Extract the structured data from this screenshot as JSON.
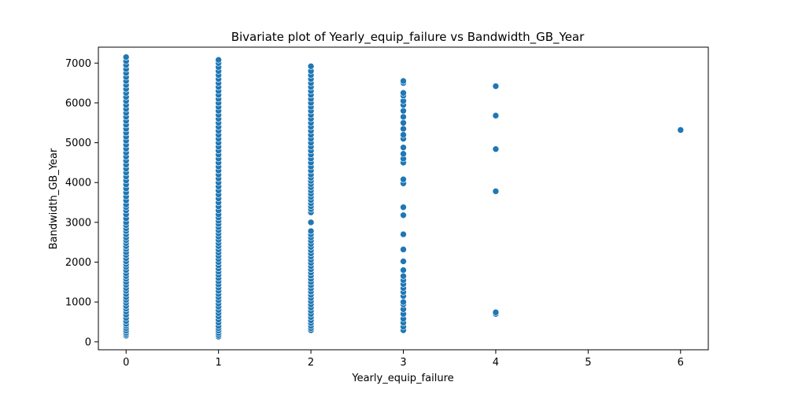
{
  "chart_data": {
    "type": "scatter",
    "title": "Bivariate plot of Yearly_equip_failure vs Bandwidth_GB_Year",
    "xlabel": "Yearly_equip_failure",
    "ylabel": "Bandwidth_GB_Year",
    "xlim": [
      -0.3,
      6.3
    ],
    "ylim": [
      -200,
      7400
    ],
    "xticks": [
      0,
      1,
      2,
      3,
      4,
      5,
      6
    ],
    "yticks": [
      0,
      1000,
      2000,
      3000,
      4000,
      5000,
      6000,
      7000
    ],
    "grid": false,
    "legend": "none",
    "color": "#1f77b4",
    "series": [
      {
        "x": 0,
        "values": [
          155,
          190,
          230,
          280,
          340,
          400,
          450,
          520,
          600,
          680,
          760,
          830,
          900,
          980,
          1050,
          1120,
          1200,
          1280,
          1350,
          1430,
          1500,
          1580,
          1650,
          1720,
          1800,
          1880,
          1950,
          2020,
          2100,
          2180,
          2250,
          2330,
          2400,
          2480,
          2550,
          2620,
          2700,
          2780,
          2850,
          2930,
          3000,
          3100,
          3200,
          3300,
          3380,
          3450,
          3550,
          3650,
          3750,
          3850,
          3950,
          4050,
          4150,
          4250,
          4350,
          4450,
          4550,
          4650,
          4750,
          4850,
          4950,
          5050,
          5150,
          5250,
          5350,
          5450,
          5550,
          5650,
          5750,
          5850,
          5950,
          6050,
          6150,
          6250,
          6350,
          6450,
          6550,
          6650,
          6750,
          6850,
          6950,
          7050,
          7150
        ]
      },
      {
        "x": 1,
        "values": [
          130,
          170,
          220,
          280,
          340,
          400,
          480,
          560,
          640,
          720,
          800,
          880,
          960,
          1040,
          1120,
          1200,
          1280,
          1360,
          1440,
          1520,
          1600,
          1680,
          1760,
          1840,
          1920,
          2000,
          2080,
          2160,
          2240,
          2320,
          2400,
          2480,
          2560,
          2640,
          2720,
          2800,
          2880,
          2960,
          3040,
          3120,
          3200,
          3300,
          3400,
          3500,
          3600,
          3700,
          3800,
          3900,
          4000,
          4100,
          4200,
          4300,
          4400,
          4500,
          4600,
          4700,
          4800,
          4900,
          5000,
          5100,
          5200,
          5300,
          5400,
          5500,
          5600,
          5700,
          5800,
          5900,
          6000,
          6100,
          6200,
          6300,
          6400,
          6500,
          6600,
          6700,
          6800,
          6900,
          7000,
          7080
        ]
      },
      {
        "x": 2,
        "values": [
          290,
          340,
          400,
          470,
          540,
          620,
          700,
          780,
          860,
          940,
          1020,
          1100,
          1180,
          1260,
          1340,
          1420,
          1500,
          1580,
          1660,
          1740,
          1820,
          1900,
          1980,
          2060,
          2140,
          2220,
          2300,
          2380,
          2460,
          2540,
          2620,
          2700,
          2780,
          3000,
          3250,
          3330,
          3400,
          3480,
          3560,
          3640,
          3720,
          3800,
          3880,
          3960,
          4040,
          4120,
          4200,
          4300,
          4400,
          4500,
          4600,
          4700,
          4800,
          4900,
          5000,
          5100,
          5200,
          5300,
          5400,
          5500,
          5600,
          5700,
          5800,
          5900,
          6000,
          6100,
          6200,
          6300,
          6400,
          6500,
          6600,
          6700,
          6800,
          6920
        ]
      },
      {
        "x": 3,
        "values": [
          290,
          380,
          480,
          580,
          700,
          820,
          940,
          1000,
          1150,
          1250,
          1350,
          1450,
          1550,
          1650,
          1800,
          2020,
          2320,
          2700,
          3180,
          3380,
          3980,
          4080,
          4500,
          4600,
          4720,
          4880,
          5100,
          5200,
          5350,
          5500,
          5650,
          5800,
          5950,
          6050,
          6180,
          6250,
          6500,
          6550
        ]
      },
      {
        "x": 4,
        "values": [
          700,
          740,
          3780,
          4840,
          5680,
          6420
        ]
      },
      {
        "x": 6,
        "values": [
          5320
        ]
      }
    ]
  }
}
